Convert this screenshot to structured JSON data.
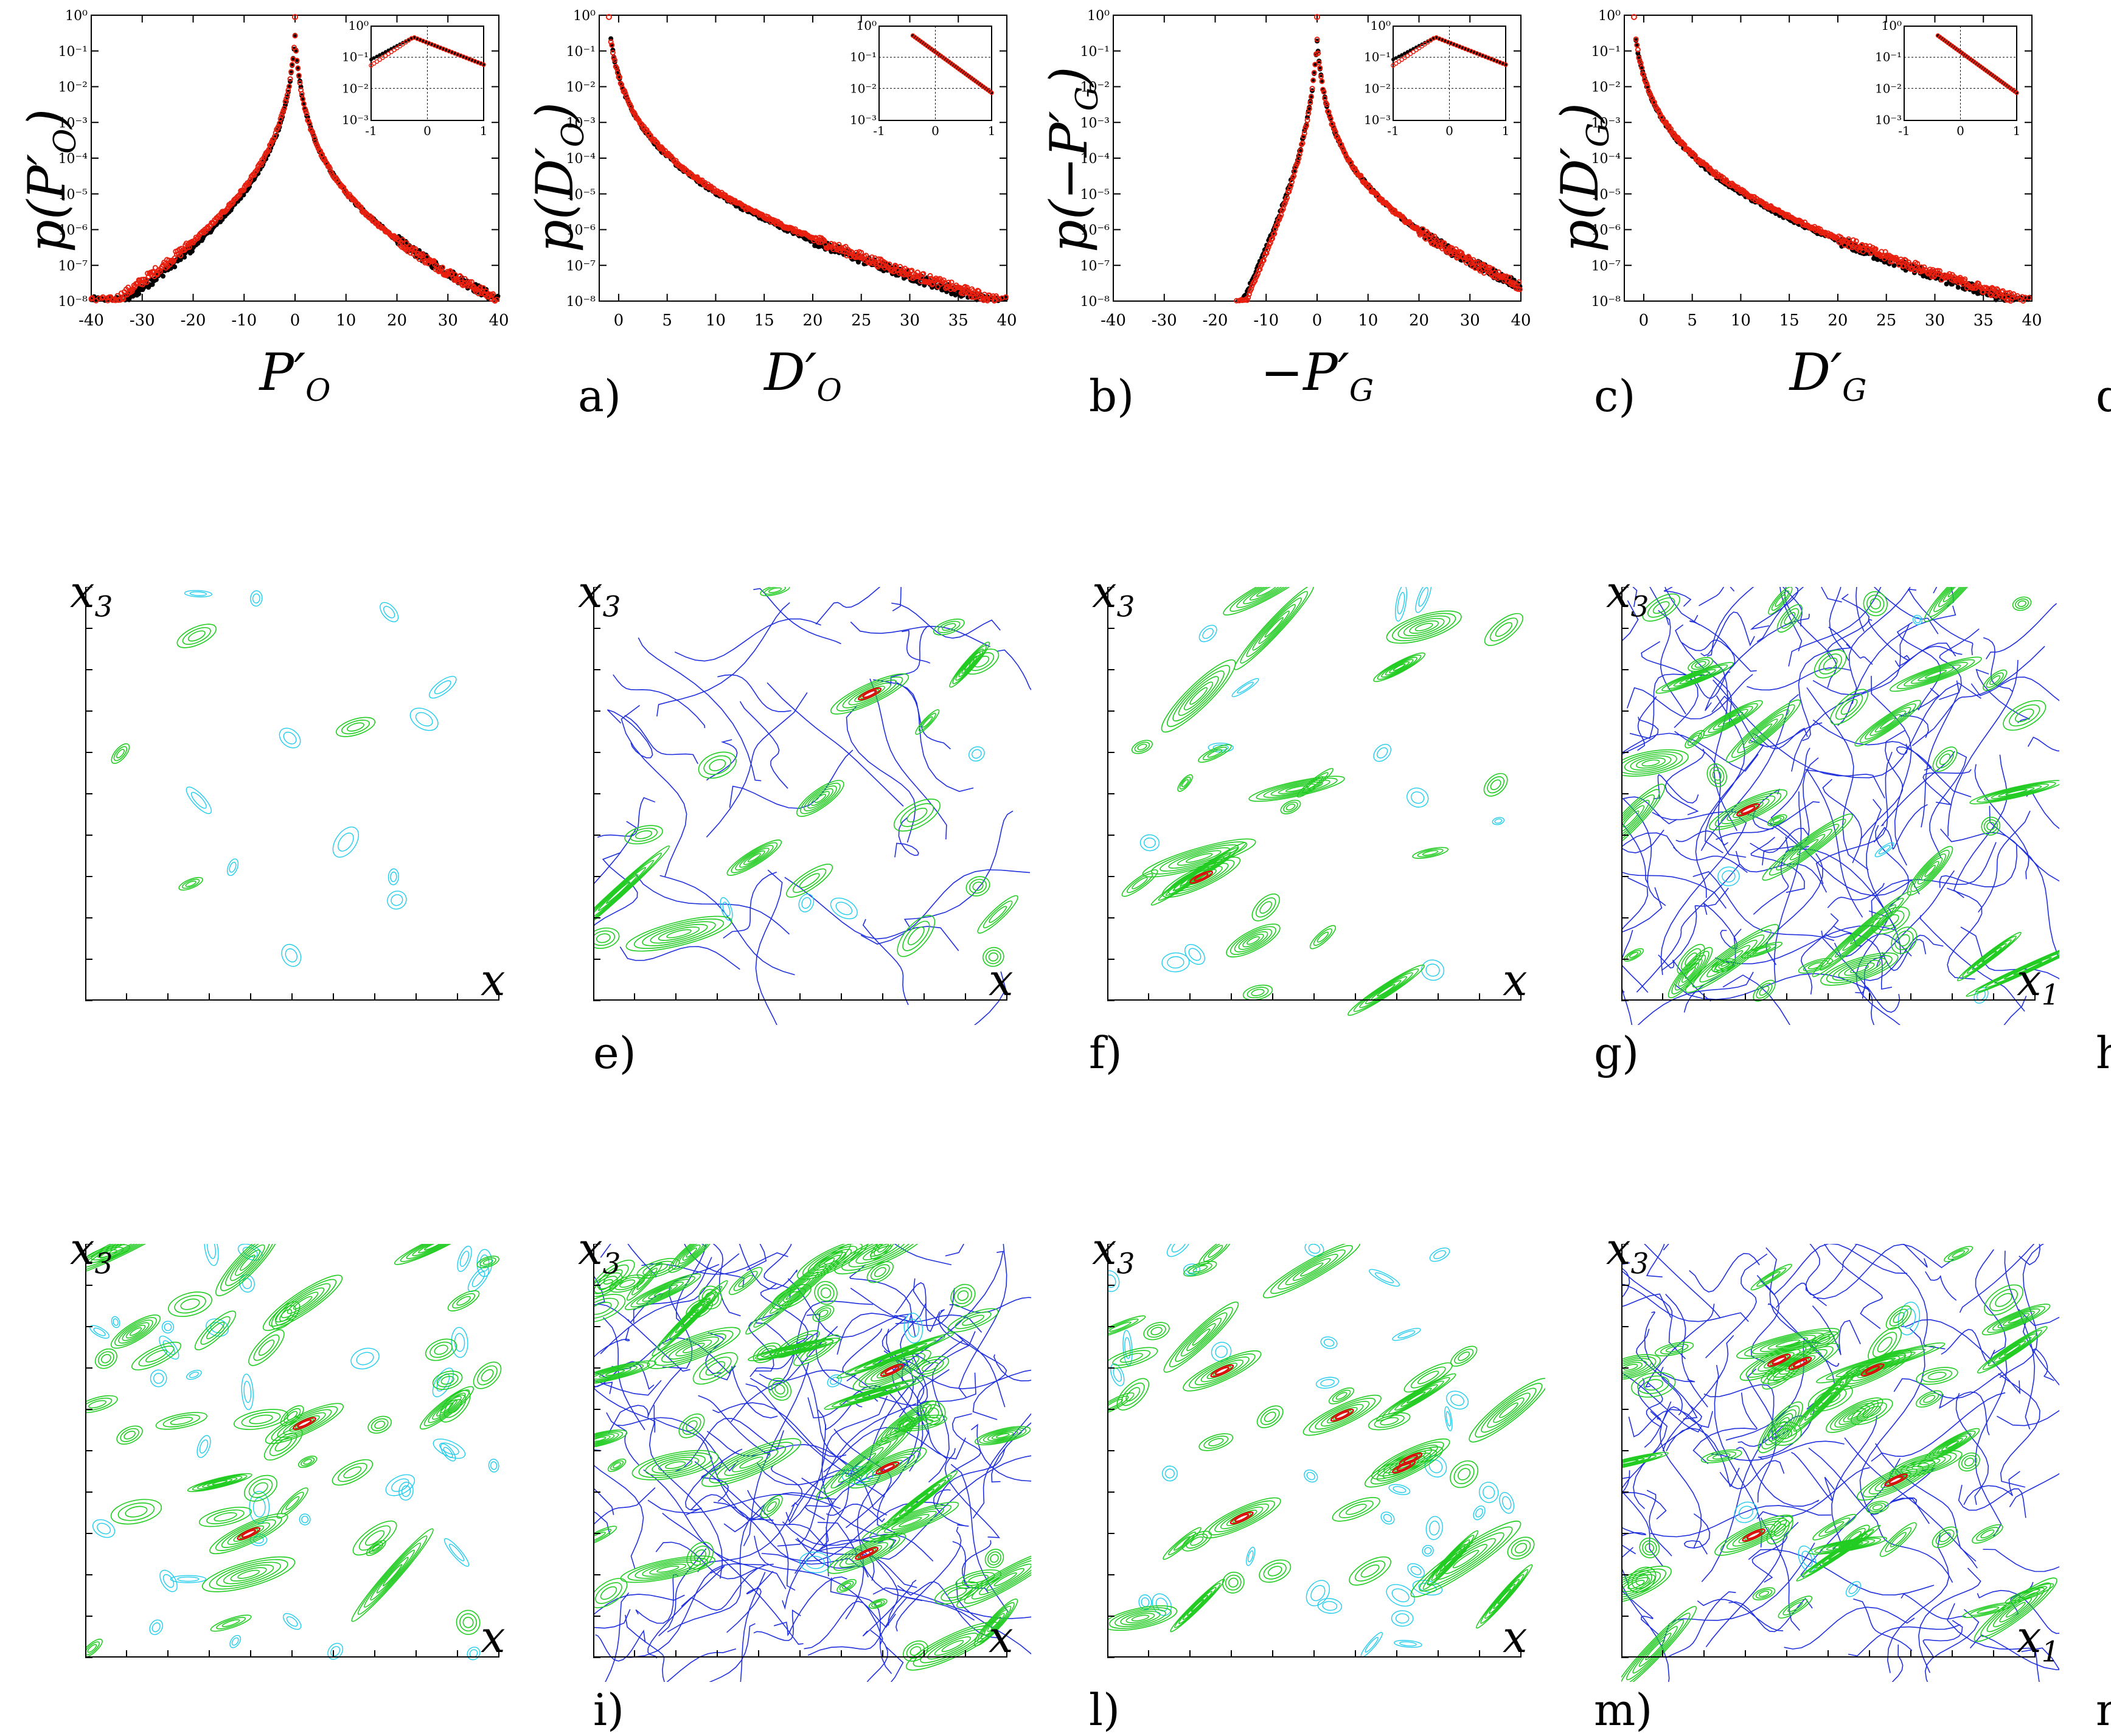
{
  "pdf_panels": [
    {
      "id": "P_O",
      "ylabel": "p(P′O)",
      "xlabel": "P′O",
      "letter": "a)",
      "x_ticks": [
        -40,
        -30,
        -20,
        -10,
        0,
        10,
        20,
        30,
        40
      ],
      "inset_x_ticks": [
        "-1",
        "0",
        "1"
      ],
      "inset_y_ticks": [
        "10⁰",
        "10⁻¹",
        "10⁻²",
        "10⁻³"
      ]
    },
    {
      "id": "D_O",
      "ylabel": "p(D′O)",
      "xlabel": "D′O",
      "letter": "b)",
      "x_ticks": [
        0,
        5,
        10,
        15,
        20,
        25,
        30,
        35,
        40
      ],
      "inset_x_ticks": [
        "-1",
        "0",
        "1"
      ],
      "inset_y_ticks": [
        "10⁰",
        "10⁻¹",
        "10⁻²",
        "10⁻³"
      ]
    },
    {
      "id": "neg_P_G",
      "ylabel": "p(−P′G)",
      "xlabel": "−P′G",
      "letter": "c)",
      "x_ticks": [
        -40,
        -30,
        -20,
        -10,
        0,
        10,
        20,
        30,
        40
      ],
      "inset_x_ticks": [
        "-1",
        "0",
        "1"
      ],
      "inset_y_ticks": [
        "10⁰",
        "10⁻¹",
        "10⁻²",
        "10⁻³"
      ]
    },
    {
      "id": "D_G",
      "ylabel": "p(D′G)",
      "xlabel": "D′G",
      "letter": "d)",
      "x_ticks": [
        0,
        5,
        10,
        15,
        20,
        25,
        30,
        35,
        40
      ],
      "inset_x_ticks": [
        "-1",
        "0",
        "1"
      ],
      "inset_y_ticks": [
        "10⁰",
        "10⁻¹",
        "10⁻²",
        "10⁻³"
      ]
    }
  ],
  "y_ticks": [
    "10⁰",
    "10⁻¹",
    "10⁻²",
    "10⁻³",
    "10⁻⁴",
    "10⁻⁵",
    "10⁻⁶",
    "10⁻⁷",
    "10⁻⁸"
  ],
  "contour_row1": [
    {
      "ylabel": "x3",
      "xlabel": "x",
      "letter": "e)"
    },
    {
      "ylabel": "x3",
      "xlabel": "x",
      "letter": "f)"
    },
    {
      "ylabel": "x3",
      "xlabel": "x",
      "letter": "g)"
    },
    {
      "ylabel": "x3",
      "xlabel": "x1",
      "letter": "h)"
    }
  ],
  "contour_row2": [
    {
      "ylabel": "x3",
      "xlabel": "x",
      "letter": "i)"
    },
    {
      "ylabel": "x3",
      "xlabel": "x",
      "letter": "l)"
    },
    {
      "ylabel": "x3",
      "xlabel": "x",
      "letter": "m)"
    },
    {
      "ylabel": "x3",
      "xlabel": "x1",
      "letter": "n)"
    }
  ],
  "colors": {
    "series_black": "#000000",
    "series_red": "#e8200f",
    "contour_green": "#22cc22",
    "contour_blue": "#2030dd",
    "contour_cyan": "#22ccee",
    "contour_red": "#dd1010"
  }
}
